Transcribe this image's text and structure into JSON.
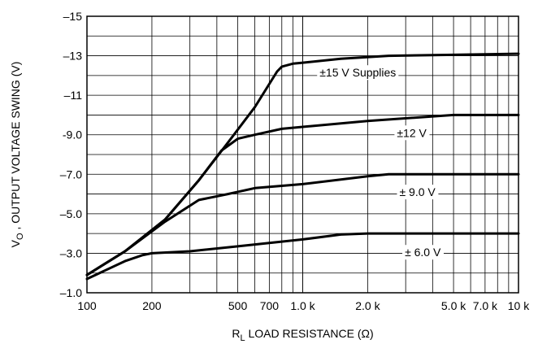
{
  "chart_data": {
    "type": "line",
    "x_scale": "log",
    "xlim": [
      100,
      10000
    ],
    "ylim": [
      -1.0,
      -15
    ],
    "grid": true,
    "xlabel": {
      "prefix": "R",
      "sub": "L",
      "suffix": " LOAD RESISTANCE (Ω)"
    },
    "ylabel": {
      "prefix": "V",
      "sub": "O",
      "suffix": " , OUTPUT VOLTAGE SWING (V)"
    },
    "x_ticks": [
      {
        "value": 100,
        "label": "100"
      },
      {
        "value": 200,
        "label": "200"
      },
      {
        "value": 500,
        "label": "500"
      },
      {
        "value": 700,
        "label": "700"
      },
      {
        "value": 1000,
        "label": "1.0 k"
      },
      {
        "value": 2000,
        "label": "2.0 k"
      },
      {
        "value": 5000,
        "label": "5.0 k"
      },
      {
        "value": 7000,
        "label": "7.0 k"
      },
      {
        "value": 10000,
        "label": "10 k"
      }
    ],
    "y_ticks": [
      {
        "value": -15,
        "label": "–15"
      },
      {
        "value": -13,
        "label": "–13"
      },
      {
        "value": -11,
        "label": "–11"
      },
      {
        "value": -9.0,
        "label": "-9.0"
      },
      {
        "value": -7.0,
        "label": "–7.0"
      },
      {
        "value": -5.0,
        "label": "–5.0"
      },
      {
        "value": -3.0,
        "label": "–3.0"
      },
      {
        "value": -1.0,
        "label": "–1.0"
      }
    ],
    "series": [
      {
        "name": "±15 V Supplies",
        "x": [
          100,
          150,
          230,
          330,
          450,
          600,
          760,
          800,
          900,
          1000,
          1500,
          2500,
          5000,
          10000
        ],
        "y": [
          -1.9,
          -3.1,
          -4.7,
          -6.7,
          -8.6,
          -10.4,
          -12.2,
          -12.45,
          -12.6,
          -12.65,
          -12.85,
          -13.0,
          -13.05,
          -13.1
        ]
      },
      {
        "name": "±12 V",
        "x": [
          100,
          150,
          230,
          330,
          420,
          500,
          600,
          800,
          1000,
          2000,
          5000,
          10000
        ],
        "y": [
          -1.9,
          -3.1,
          -4.7,
          -6.7,
          -8.2,
          -8.8,
          -9.0,
          -9.3,
          -9.4,
          -9.7,
          -10.0,
          -10.0
        ]
      },
      {
        "name": "±9.0 V",
        "x": [
          100,
          150,
          230,
          330,
          450,
          600,
          1000,
          2000,
          2500,
          5000,
          10000
        ],
        "y": [
          -1.9,
          -3.1,
          -4.6,
          -5.7,
          -6.0,
          -6.3,
          -6.5,
          -6.9,
          -7.0,
          -7.0,
          -7.0
        ]
      },
      {
        "name": "±6.0 V",
        "x": [
          100,
          150,
          180,
          200,
          300,
          500,
          1000,
          1500,
          2000,
          5000,
          10000
        ],
        "y": [
          -1.7,
          -2.6,
          -2.9,
          -3.0,
          -3.1,
          -3.35,
          -3.7,
          -3.95,
          -4.0,
          -4.0,
          -4.0
        ]
      }
    ],
    "annotations": [
      {
        "text": "±15 V Supplies",
        "series": "±15 V Supplies"
      },
      {
        "text": "±12 V",
        "series": "±12 V"
      },
      {
        "text": "± 9.0 V",
        "series": "±9.0 V"
      },
      {
        "text": "± 6.0 V",
        "series": "±6.0 V"
      }
    ]
  }
}
